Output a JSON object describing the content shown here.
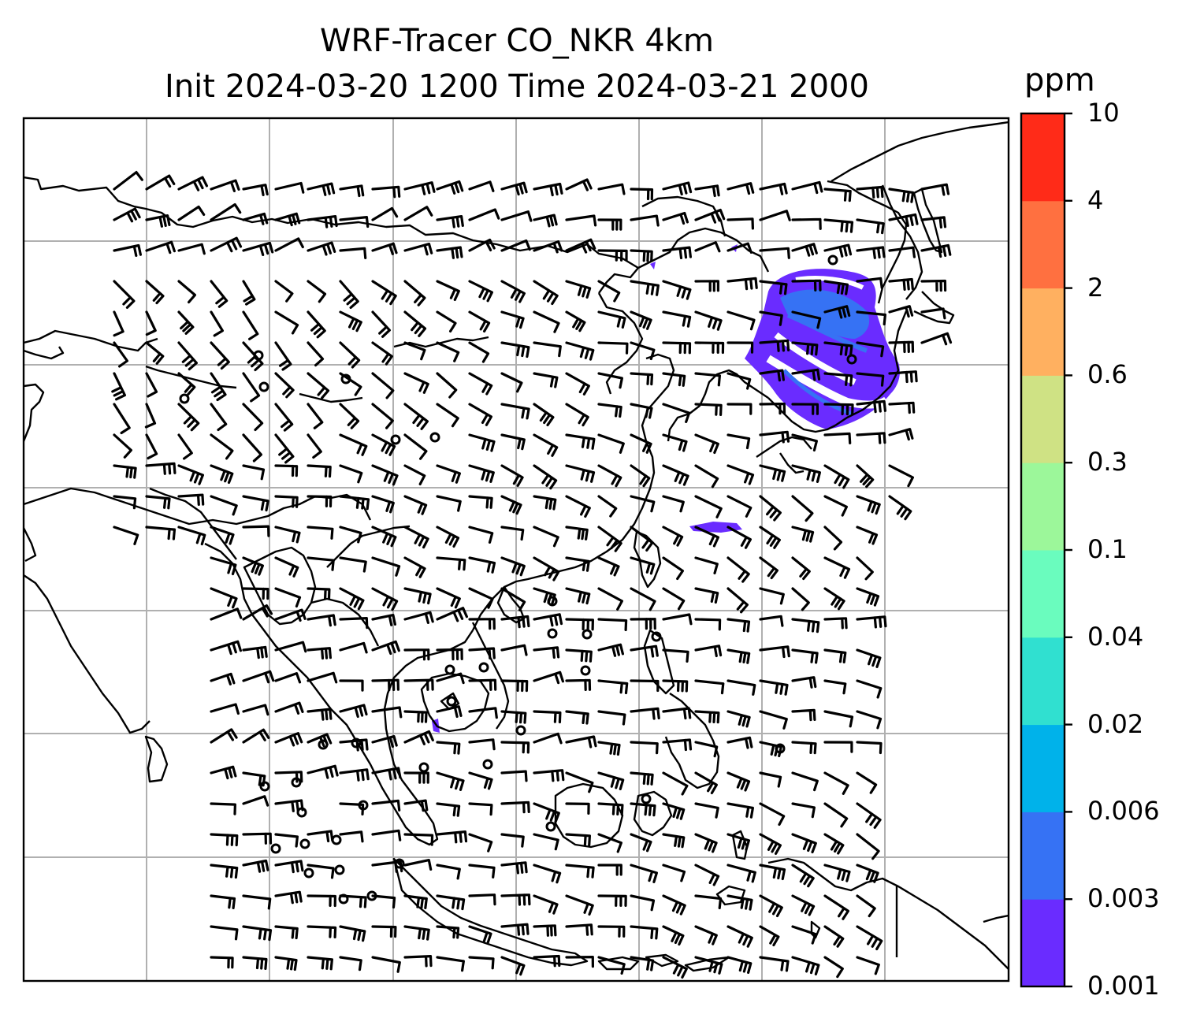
{
  "title": {
    "line1": "WRF-Tracer CO_NKR 4km",
    "line2": "Init 2024-03-20 1200 Time 2024-03-21 2000"
  },
  "colorbar": {
    "unit": "ppm",
    "ticks": [
      "0.001",
      "0.003",
      "0.006",
      "0.02",
      "0.04",
      "0.1",
      "0.3",
      "0.6",
      "2",
      "4",
      "10"
    ],
    "colors": [
      "#6a2cff",
      "#3672f4",
      "#00b2ea",
      "#30e0d0",
      "#6afcbe",
      "#9cf79a",
      "#cfe284",
      "#ffb060",
      "#ff7040",
      "#ff2b18"
    ]
  },
  "map": {
    "gridline_color": "#b0b0b0",
    "coastline_color": "#000000",
    "tracer_color": "#6a2cff",
    "tracer_color_2": "#3672f4"
  }
}
